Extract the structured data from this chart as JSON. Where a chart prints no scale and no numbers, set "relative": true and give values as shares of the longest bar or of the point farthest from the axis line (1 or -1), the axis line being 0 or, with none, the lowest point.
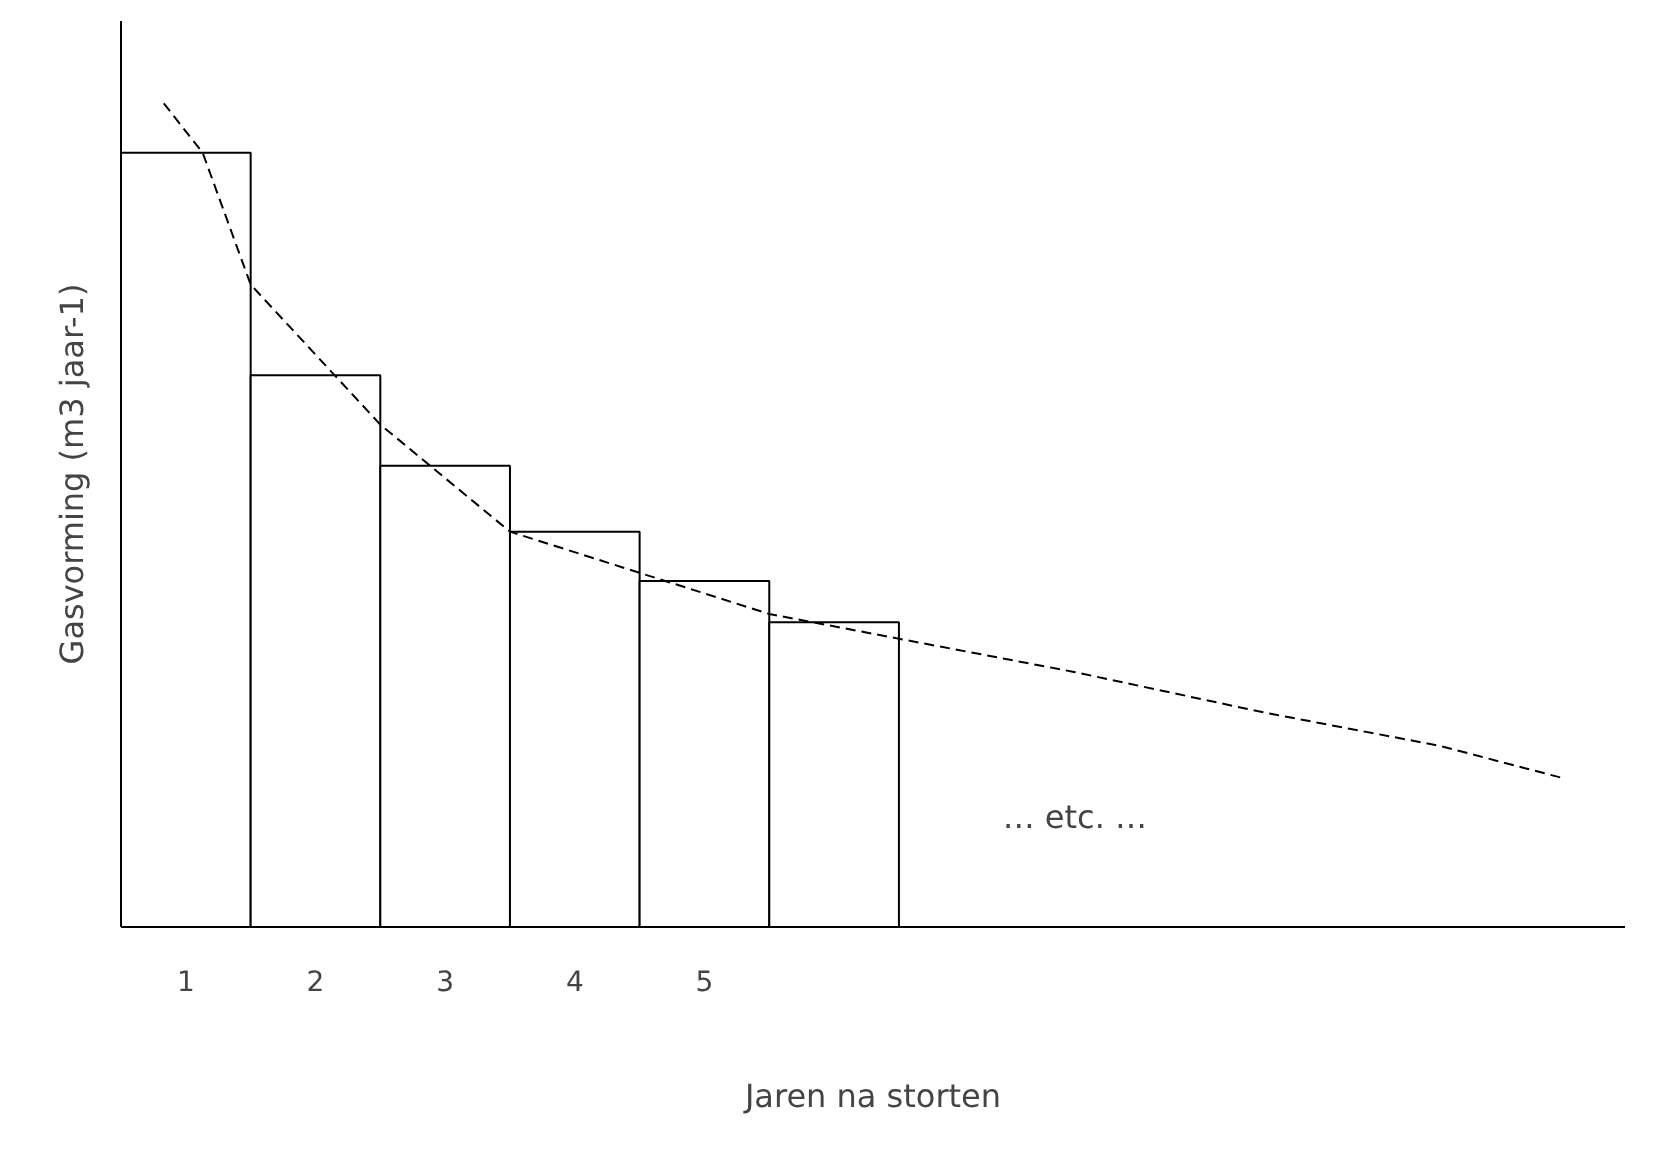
{
  "chart_data": {
    "type": "bar",
    "relative": true,
    "xlabel": "Jaren na storten",
    "ylabel": "Gasvorming (m3 jaar-1)",
    "x": [
      1,
      2,
      3,
      4,
      5,
      6
    ],
    "xlim": [
      0.5,
      12.1
    ],
    "xticks": [
      1,
      2,
      3,
      4,
      5
    ],
    "tick_labels": "x",
    "grid": false,
    "annotations": [
      "… etc. …"
    ],
    "series": [
      {
        "color": "#ffffff",
        "values": [
          0.94,
          0.67,
          0.56,
          0.48,
          0.42,
          0.37
        ]
      },
      {
        "type": "line",
        "color": "#000000",
        "line_style": "dashed",
        "marker": "none",
        "x": [
          0.83,
          1.13,
          1.5,
          2.5,
          3.5,
          4.5,
          5.5,
          6.5,
          7.84,
          9.33,
          10.67,
          11.64
        ],
        "values": [
          1,
          0.94,
          0.78,
          0.61,
          0.48,
          0.43,
          0.38,
          0.35,
          0.31,
          0.26,
          0.22,
          0.18
        ]
      }
    ]
  }
}
